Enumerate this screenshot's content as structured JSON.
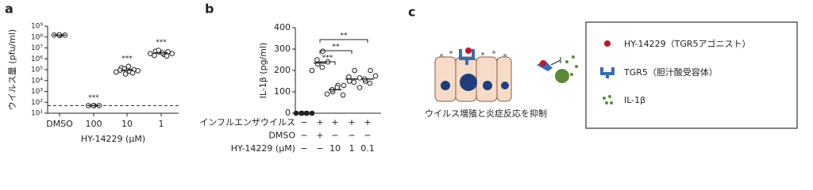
{
  "chart_data": [
    {
      "type": "scatter",
      "panel": "a",
      "y_label": "ウイルス量 (pfu/ml)",
      "x_label": "HY-14229 (μM)",
      "y_log": true,
      "ylim": [
        10,
        1000000000
      ],
      "yticks": [
        {
          "value": 10,
          "label": "10¹"
        },
        {
          "value": 100,
          "label": "10²"
        },
        {
          "value": 1000,
          "label": "10³"
        },
        {
          "value": 10000,
          "label": "10⁴"
        },
        {
          "value": 100000,
          "label": "10⁵"
        },
        {
          "value": 1000000,
          "label": "10⁶"
        },
        {
          "value": 10000000,
          "label": "10⁷"
        },
        {
          "value": 100000000,
          "label": "10⁸"
        },
        {
          "value": 1000000000,
          "label": "10⁹"
        }
      ],
      "categories": [
        "DMSO",
        "100",
        "10",
        "1"
      ],
      "values": [
        [
          150000000,
          140000000,
          160000000,
          150000000
        ],
        [
          50,
          50,
          50,
          50
        ],
        [
          60000,
          150000,
          90000,
          40000,
          120000,
          70000,
          200000,
          100000,
          50000,
          80000
        ],
        [
          3000000,
          5000000,
          2000000,
          4000000,
          6000000,
          2500000,
          3500000,
          4500000,
          1800000,
          3000000
        ]
      ],
      "means": [
        150000000,
        50,
        90000,
        3500000
      ],
      "reference_line": 50,
      "significance": [
        null,
        "***",
        "***",
        "***"
      ]
    },
    {
      "type": "scatter",
      "panel": "b",
      "y_label": "IL-1β (pg/ml)",
      "ylim": [
        0,
        400
      ],
      "yticks": [
        0,
        100,
        200,
        300,
        400
      ],
      "values": [
        [
          0,
          0,
          0,
          0,
          0,
          0
        ],
        [
          200,
          230,
          250,
          290,
          215,
          240
        ],
        [
          90,
          100,
          110,
          130,
          120,
          85
        ],
        [
          130,
          150,
          170,
          200,
          145,
          165
        ],
        [
          120,
          150,
          160,
          200,
          140,
          175
        ]
      ],
      "means": [
        0,
        235,
        110,
        160,
        160
      ],
      "point_fill": [
        "filled",
        "open",
        "open",
        "open",
        "open"
      ],
      "brackets": [
        {
          "from": 1,
          "to": 2,
          "label": "***"
        },
        {
          "from": 1,
          "to": 3,
          "label": "**"
        },
        {
          "from": 1,
          "to": 4,
          "label": "**"
        }
      ],
      "conditions": [
        {
          "label": "インフルエンザウイルス",
          "values": [
            "−",
            "+",
            "+",
            "+",
            "+"
          ]
        },
        {
          "label": "DMSO",
          "values": [
            "−",
            "+",
            "−",
            "−",
            "−"
          ]
        },
        {
          "label": "HY-14229 (μM)",
          "values": [
            "−",
            "−",
            "10",
            "1",
            "0.1"
          ]
        }
      ]
    }
  ],
  "panel_c": {
    "panel": "c",
    "caption": "ウイルス増殖と炎症反応を抑制",
    "legend": [
      "HY-14229（TGR5アゴニスト）",
      "TGR5（胆汁酸受容体）",
      "IL-1β"
    ]
  }
}
